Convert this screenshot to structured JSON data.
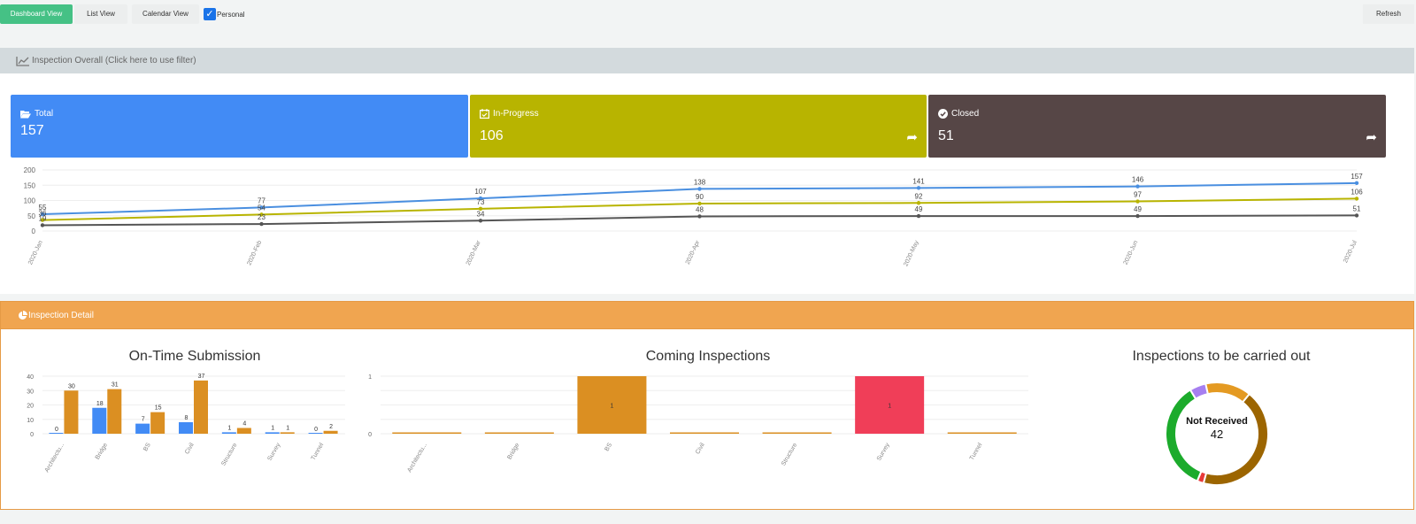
{
  "toolbar": {
    "dashboard_view": "Dashboard View",
    "list_view": "List View",
    "calendar_view": "Calendar View",
    "personal_label": "Personal",
    "personal_checked": true,
    "refresh": "Refresh"
  },
  "overall": {
    "header": "Inspection Overall (Click here to use filter)",
    "cards": {
      "total": {
        "label": "Total",
        "value": "157",
        "color": "#428bf5"
      },
      "inprogress": {
        "label": "In-Progress",
        "value": "106",
        "color": "#b8b400"
      },
      "closed": {
        "label": "Closed",
        "value": "51",
        "color": "#564646"
      }
    }
  },
  "detail": {
    "header": "Inspection Detail",
    "ontime_title": "On-Time Submission",
    "coming_title": "Coming Inspections",
    "carried_title": "Inspections to be carried out",
    "donut_center_label": "Not Received",
    "donut_center_value": "42"
  },
  "chart_data": [
    {
      "type": "line",
      "categories": [
        "2020-Jan",
        "2020-Feb",
        "2020-Mar",
        "2020-Apr",
        "2020-May",
        "2020-Jun",
        "2020-Jul"
      ],
      "ylim": [
        0,
        200
      ],
      "yticks": [
        0,
        50,
        100,
        150,
        200
      ],
      "grid": true,
      "series": [
        {
          "key": "total",
          "values": [
            55,
            77,
            107,
            138,
            141,
            146,
            157
          ],
          "color": "#4a8fe0"
        },
        {
          "key": "inprogress",
          "values": [
            36,
            54,
            73,
            90,
            92,
            97,
            106
          ],
          "color": "#b8b400"
        },
        {
          "key": "closed",
          "values": [
            19,
            23,
            34,
            48,
            49,
            49,
            51
          ],
          "color": "#555555"
        }
      ]
    },
    {
      "type": "bar",
      "title": "On-Time Submission",
      "categories": [
        "Architectu...",
        "Bridge",
        "BS",
        "Civil",
        "Structure",
        "Survey",
        "Tunnel"
      ],
      "ylim": [
        0,
        40
      ],
      "yticks": [
        0,
        10,
        20,
        30,
        40
      ],
      "series": [
        {
          "values": [
            0,
            18,
            7,
            8,
            1,
            1,
            0
          ],
          "color": "#428bf5"
        },
        {
          "values": [
            30,
            31,
            15,
            37,
            4,
            1,
            2
          ],
          "color": "#db8f22"
        }
      ]
    },
    {
      "type": "bar",
      "title": "Coming Inspections",
      "categories": [
        "Architectu...",
        "Bridge",
        "BS",
        "Civil",
        "Structure",
        "Survey",
        "Tunnel"
      ],
      "ylim": [
        0,
        1
      ],
      "yticks": [
        0,
        1
      ],
      "values": [
        0,
        0,
        1,
        0,
        0,
        1,
        0
      ],
      "colors": [
        "#db8f22",
        "#db8f22",
        "#db8f22",
        "#db8f22",
        "#db8f22",
        "#f03e58",
        "#db8f22"
      ]
    },
    {
      "type": "pie",
      "title": "Inspections to be carried out",
      "slices": [
        {
          "value": 42,
          "color": "#9c6500"
        },
        {
          "value": 2,
          "color": "#e83a3a"
        },
        {
          "value": 34,
          "color": "#1cab2c"
        },
        {
          "value": 5,
          "color": "#a67ff0"
        },
        {
          "value": 14,
          "color": "#e49a22"
        }
      ]
    }
  ]
}
